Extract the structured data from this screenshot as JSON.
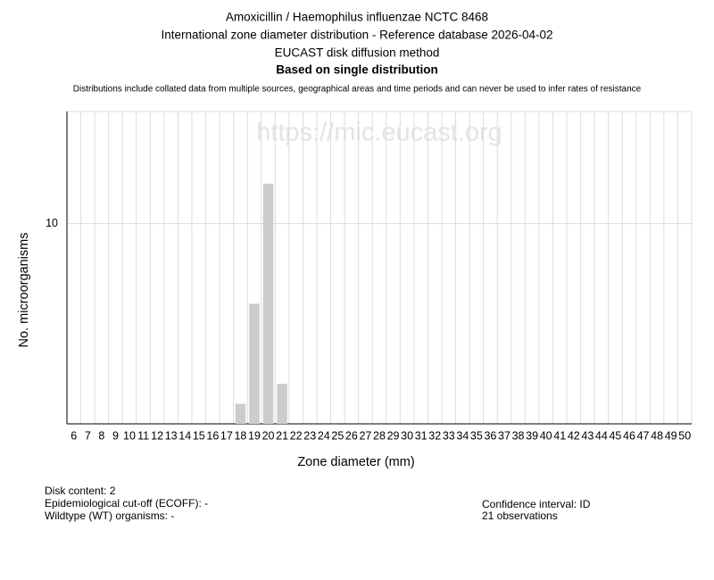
{
  "chart_data": {
    "type": "bar",
    "title_lines": [
      "Amoxicillin / Haemophilus influenzae NCTC 8468",
      "International zone diameter distribution - Reference database 2026-04-02",
      "EUCAST disk diffusion method"
    ],
    "subtitle": "Based on single distribution",
    "note": "Distributions include collated data from multiple sources, geographical areas and time periods and can never be used to infer rates of resistance",
    "watermark": "https://mic.eucast.org",
    "x_label": "Zone diameter (mm)",
    "y_label": "No. microorganisms",
    "categories": [
      "6",
      "7",
      "8",
      "9",
      "10",
      "11",
      "12",
      "13",
      "14",
      "15",
      "16",
      "17",
      "18",
      "19",
      "20",
      "21",
      "22",
      "23",
      "24",
      "25",
      "26",
      "27",
      "28",
      "29",
      "30",
      "31",
      "32",
      "33",
      "34",
      "35",
      "36",
      "37",
      "38",
      "39",
      "40",
      "41",
      "42",
      "43",
      "44",
      "45",
      "46",
      "47",
      "48",
      "49",
      "50"
    ],
    "values": [
      0,
      0,
      0,
      0,
      0,
      0,
      0,
      0,
      0,
      0,
      0,
      0,
      1,
      6,
      12,
      2,
      0,
      0,
      0,
      0,
      0,
      0,
      0,
      0,
      0,
      0,
      0,
      0,
      0,
      0,
      0,
      0,
      0,
      0,
      0,
      0,
      0,
      0,
      0,
      0,
      0,
      0,
      0,
      0,
      0
    ],
    "color": "#cccccc",
    "ylim": [
      0,
      15.6
    ],
    "yticks": [
      10
    ],
    "grid": true,
    "annotations_left": [
      "Disk content: 2",
      "Epidemiological cut-off (ECOFF): -",
      "Wildtype (WT) organisms:  -"
    ],
    "annotations_right": [
      "Confidence interval: ID",
      "21 observations"
    ]
  }
}
